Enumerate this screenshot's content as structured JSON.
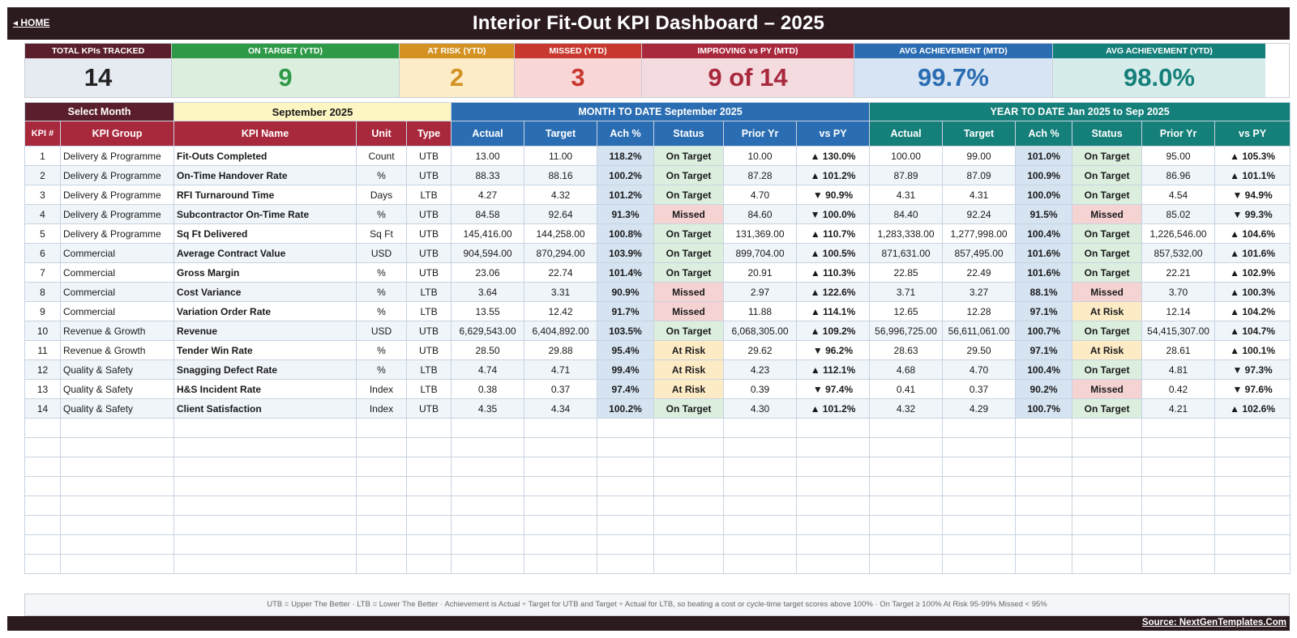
{
  "header": {
    "home_label": "◂  HOME",
    "title": "Interior Fit-Out KPI Dashboard   –   2025"
  },
  "cards": [
    {
      "label": "TOTAL KPIs TRACKED",
      "value": "14",
      "head_color": "#5a1e2c",
      "bg_color": "#e6eaf1",
      "value_color": "#222222"
    },
    {
      "label": "ON TARGET (YTD)",
      "value": "9",
      "head_color": "#2e9a47",
      "bg_color": "#dcefdf",
      "value_color": "#2e9a47"
    },
    {
      "label": "AT RISK (YTD)",
      "value": "2",
      "head_color": "#d39222",
      "bg_color": "#fdecc8",
      "value_color": "#d39222"
    },
    {
      "label": "MISSED (YTD)",
      "value": "3",
      "head_color": "#c8382f",
      "bg_color": "#f8d7d6",
      "value_color": "#c8382f"
    },
    {
      "label": "IMPROVING vs PY (MTD)",
      "value": "9 of 14",
      "head_color": "#a8283c",
      "bg_color": "#f3dbe0",
      "value_color": "#a8283c"
    },
    {
      "label": "AVG ACHIEVEMENT (MTD)",
      "value": "99.7%",
      "head_color": "#2b6db2",
      "bg_color": "#d7e4f3",
      "value_color": "#2b6db2"
    },
    {
      "label": "AVG ACHIEVEMENT (YTD)",
      "value": "98.0%",
      "head_color": "#157f7a",
      "bg_color": "#d6ecea",
      "value_color": "#157f7a"
    }
  ],
  "controls": {
    "select_month_label": "Select Month",
    "selected_month": "September 2025",
    "mtd_banner": "MONTH TO DATE      September 2025",
    "ytd_banner": "YEAR TO DATE      Jan 2025  to  Sep 2025"
  },
  "columns": {
    "kpi_num": "KPI #",
    "group": "KPI Group",
    "name": "KPI Name",
    "unit": "Unit",
    "type": "Type",
    "actual": "Actual",
    "target": "Target",
    "ach": "Ach %",
    "status": "Status",
    "prior": "Prior Yr",
    "vspy": "vs PY"
  },
  "colors": {
    "maroon": "#a8283c",
    "dark_maroon": "#5a1e2c",
    "blue": "#2b6db2",
    "teal": "#157f7a",
    "month_highlight": "#fdf6c3"
  },
  "rows": [
    {
      "num": "1",
      "group": "Delivery & Programme",
      "name": "Fit-Outs Completed",
      "unit": "Count",
      "type": "UTB",
      "mtd": {
        "actual": "13.00",
        "target": "11.00",
        "ach": "118.2%",
        "status": "On Target",
        "prior": "10.00",
        "vspy": "▲ 130.0%"
      },
      "ytd": {
        "actual": "100.00",
        "target": "99.00",
        "ach": "101.0%",
        "status": "On Target",
        "prior": "95.00",
        "vspy": "▲ 105.3%"
      }
    },
    {
      "num": "2",
      "group": "Delivery & Programme",
      "name": "On-Time Handover Rate",
      "unit": "%",
      "type": "UTB",
      "mtd": {
        "actual": "88.33",
        "target": "88.16",
        "ach": "100.2%",
        "status": "On Target",
        "prior": "87.28",
        "vspy": "▲ 101.2%"
      },
      "ytd": {
        "actual": "87.89",
        "target": "87.09",
        "ach": "100.9%",
        "status": "On Target",
        "prior": "86.96",
        "vspy": "▲ 101.1%"
      }
    },
    {
      "num": "3",
      "group": "Delivery & Programme",
      "name": "RFI Turnaround Time",
      "unit": "Days",
      "type": "LTB",
      "mtd": {
        "actual": "4.27",
        "target": "4.32",
        "ach": "101.2%",
        "status": "On Target",
        "prior": "4.70",
        "vspy": "▼ 90.9%"
      },
      "ytd": {
        "actual": "4.31",
        "target": "4.31",
        "ach": "100.0%",
        "status": "On Target",
        "prior": "4.54",
        "vspy": "▼ 94.9%"
      }
    },
    {
      "num": "4",
      "group": "Delivery & Programme",
      "name": "Subcontractor On-Time Rate",
      "unit": "%",
      "type": "UTB",
      "mtd": {
        "actual": "84.58",
        "target": "92.64",
        "ach": "91.3%",
        "status": "Missed",
        "prior": "84.60",
        "vspy": "▼ 100.0%"
      },
      "ytd": {
        "actual": "84.40",
        "target": "92.24",
        "ach": "91.5%",
        "status": "Missed",
        "prior": "85.02",
        "vspy": "▼ 99.3%"
      }
    },
    {
      "num": "5",
      "group": "Delivery & Programme",
      "name": "Sq Ft Delivered",
      "unit": "Sq Ft",
      "type": "UTB",
      "mtd": {
        "actual": "145,416.00",
        "target": "144,258.00",
        "ach": "100.8%",
        "status": "On Target",
        "prior": "131,369.00",
        "vspy": "▲ 110.7%"
      },
      "ytd": {
        "actual": "1,283,338.00",
        "target": "1,277,998.00",
        "ach": "100.4%",
        "status": "On Target",
        "prior": "1,226,546.00",
        "vspy": "▲ 104.6%"
      }
    },
    {
      "num": "6",
      "group": "Commercial",
      "name": "Average Contract Value",
      "unit": "USD",
      "type": "UTB",
      "mtd": {
        "actual": "904,594.00",
        "target": "870,294.00",
        "ach": "103.9%",
        "status": "On Target",
        "prior": "899,704.00",
        "vspy": "▲ 100.5%"
      },
      "ytd": {
        "actual": "871,631.00",
        "target": "857,495.00",
        "ach": "101.6%",
        "status": "On Target",
        "prior": "857,532.00",
        "vspy": "▲ 101.6%"
      }
    },
    {
      "num": "7",
      "group": "Commercial",
      "name": "Gross Margin",
      "unit": "%",
      "type": "UTB",
      "mtd": {
        "actual": "23.06",
        "target": "22.74",
        "ach": "101.4%",
        "status": "On Target",
        "prior": "20.91",
        "vspy": "▲ 110.3%"
      },
      "ytd": {
        "actual": "22.85",
        "target": "22.49",
        "ach": "101.6%",
        "status": "On Target",
        "prior": "22.21",
        "vspy": "▲ 102.9%"
      }
    },
    {
      "num": "8",
      "group": "Commercial",
      "name": "Cost Variance",
      "unit": "%",
      "type": "LTB",
      "mtd": {
        "actual": "3.64",
        "target": "3.31",
        "ach": "90.9%",
        "status": "Missed",
        "prior": "2.97",
        "vspy": "▲ 122.6%"
      },
      "ytd": {
        "actual": "3.71",
        "target": "3.27",
        "ach": "88.1%",
        "status": "Missed",
        "prior": "3.70",
        "vspy": "▲ 100.3%"
      }
    },
    {
      "num": "9",
      "group": "Commercial",
      "name": "Variation Order Rate",
      "unit": "%",
      "type": "LTB",
      "mtd": {
        "actual": "13.55",
        "target": "12.42",
        "ach": "91.7%",
        "status": "Missed",
        "prior": "11.88",
        "vspy": "▲ 114.1%"
      },
      "ytd": {
        "actual": "12.65",
        "target": "12.28",
        "ach": "97.1%",
        "status": "At Risk",
        "prior": "12.14",
        "vspy": "▲ 104.2%"
      }
    },
    {
      "num": "10",
      "group": "Revenue & Growth",
      "name": "Revenue",
      "unit": "USD",
      "type": "UTB",
      "mtd": {
        "actual": "6,629,543.00",
        "target": "6,404,892.00",
        "ach": "103.5%",
        "status": "On Target",
        "prior": "6,068,305.00",
        "vspy": "▲ 109.2%"
      },
      "ytd": {
        "actual": "56,996,725.00",
        "target": "56,611,061.00",
        "ach": "100.7%",
        "status": "On Target",
        "prior": "54,415,307.00",
        "vspy": "▲ 104.7%"
      }
    },
    {
      "num": "11",
      "group": "Revenue & Growth",
      "name": "Tender Win Rate",
      "unit": "%",
      "type": "UTB",
      "mtd": {
        "actual": "28.50",
        "target": "29.88",
        "ach": "95.4%",
        "status": "At Risk",
        "prior": "29.62",
        "vspy": "▼ 96.2%"
      },
      "ytd": {
        "actual": "28.63",
        "target": "29.50",
        "ach": "97.1%",
        "status": "At Risk",
        "prior": "28.61",
        "vspy": "▲ 100.1%"
      }
    },
    {
      "num": "12",
      "group": "Quality & Safety",
      "name": "Snagging Defect Rate",
      "unit": "%",
      "type": "LTB",
      "mtd": {
        "actual": "4.74",
        "target": "4.71",
        "ach": "99.4%",
        "status": "At Risk",
        "prior": "4.23",
        "vspy": "▲ 112.1%"
      },
      "ytd": {
        "actual": "4.68",
        "target": "4.70",
        "ach": "100.4%",
        "status": "On Target",
        "prior": "4.81",
        "vspy": "▼ 97.3%"
      }
    },
    {
      "num": "13",
      "group": "Quality & Safety",
      "name": "H&S Incident Rate",
      "unit": "Index",
      "type": "LTB",
      "mtd": {
        "actual": "0.38",
        "target": "0.37",
        "ach": "97.4%",
        "status": "At Risk",
        "prior": "0.39",
        "vspy": "▼ 97.4%"
      },
      "ytd": {
        "actual": "0.41",
        "target": "0.37",
        "ach": "90.2%",
        "status": "Missed",
        "prior": "0.42",
        "vspy": "▼ 97.6%"
      }
    },
    {
      "num": "14",
      "group": "Quality & Safety",
      "name": "Client Satisfaction",
      "unit": "Index",
      "type": "UTB",
      "mtd": {
        "actual": "4.35",
        "target": "4.34",
        "ach": "100.2%",
        "status": "On Target",
        "prior": "4.30",
        "vspy": "▲ 101.2%"
      },
      "ytd": {
        "actual": "4.32",
        "target": "4.29",
        "ach": "100.7%",
        "status": "On Target",
        "prior": "4.21",
        "vspy": "▲ 102.6%"
      }
    }
  ],
  "footer": {
    "legend": "UTB = Upper The Better    ·    LTB = Lower The Better    ·    Achievement is Actual ÷ Target for UTB and Target ÷ Actual for LTB, so beating a cost or cycle-time target scores above 100%    ·    On Target ≥ 100%     At Risk 95-99%     Missed < 95%",
    "source": "Source: NextGenTemplates.Com"
  }
}
